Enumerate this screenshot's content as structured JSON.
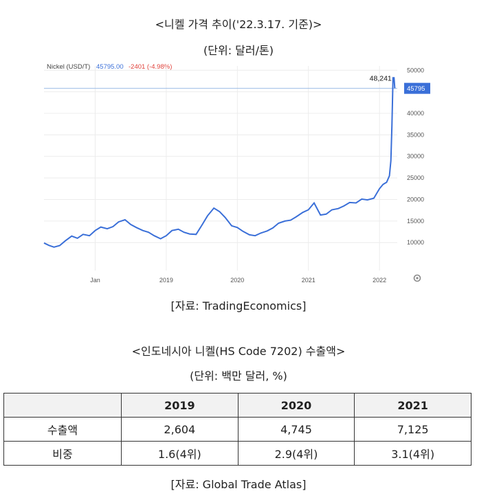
{
  "header": {
    "chart_title": "<니켈 가격 추이('22.3.17. 기준)>",
    "chart_unit": "(단위: 달러/톤)",
    "chart_source": "[자료: TradingEconomics]",
    "table_title": "<인도네시아 니켈(HS Code 7202) 수출액>",
    "table_unit": "(단위: 백만 달러, %)",
    "table_source": "[자료: Global Trade Atlas]"
  },
  "chart_data": {
    "type": "line",
    "series_label": "Nickel (USD/T)",
    "last_value_text": "45795.00",
    "change_text": "-2401 (-4.98%)",
    "peak_label": "48,241",
    "current_tag": "45795",
    "y_ticks": [
      10000,
      15000,
      20000,
      25000,
      30000,
      35000,
      40000,
      45000,
      50000
    ],
    "ylim": [
      3500,
      51000
    ],
    "x_ticks": [
      {
        "label": "Jan",
        "x": 2018.0
      },
      {
        "label": "2019",
        "x": 2019.0
      },
      {
        "label": "2020",
        "x": 2020.0
      },
      {
        "label": "2021",
        "x": 2021.0
      },
      {
        "label": "2022",
        "x": 2022.0
      }
    ],
    "xlim": [
      2017.28,
      2022.25
    ],
    "colors": {
      "line": "#3a6fd8",
      "ref_line": "#9bbbe6",
      "tag_bg": "#3a6fd8",
      "change": "#e0413a",
      "value": "#3a6fd8"
    },
    "points": [
      [
        2017.28,
        9900
      ],
      [
        2017.35,
        9350
      ],
      [
        2017.42,
        8950
      ],
      [
        2017.5,
        9300
      ],
      [
        2017.58,
        10400
      ],
      [
        2017.67,
        11500
      ],
      [
        2017.75,
        11000
      ],
      [
        2017.83,
        11900
      ],
      [
        2017.92,
        11600
      ],
      [
        2018.0,
        12800
      ],
      [
        2018.08,
        13600
      ],
      [
        2018.17,
        13200
      ],
      [
        2018.25,
        13700
      ],
      [
        2018.33,
        14800
      ],
      [
        2018.42,
        15300
      ],
      [
        2018.5,
        14200
      ],
      [
        2018.58,
        13500
      ],
      [
        2018.67,
        12800
      ],
      [
        2018.75,
        12400
      ],
      [
        2018.83,
        11600
      ],
      [
        2018.92,
        10900
      ],
      [
        2019.0,
        11600
      ],
      [
        2019.08,
        12800
      ],
      [
        2019.17,
        13100
      ],
      [
        2019.25,
        12400
      ],
      [
        2019.33,
        12000
      ],
      [
        2019.42,
        11900
      ],
      [
        2019.5,
        14000
      ],
      [
        2019.58,
        16200
      ],
      [
        2019.67,
        18000
      ],
      [
        2019.75,
        17200
      ],
      [
        2019.83,
        15800
      ],
      [
        2019.92,
        13900
      ],
      [
        2020.0,
        13500
      ],
      [
        2020.08,
        12600
      ],
      [
        2020.17,
        11800
      ],
      [
        2020.25,
        11600
      ],
      [
        2020.33,
        12200
      ],
      [
        2020.42,
        12700
      ],
      [
        2020.5,
        13400
      ],
      [
        2020.58,
        14500
      ],
      [
        2020.67,
        15000
      ],
      [
        2020.75,
        15200
      ],
      [
        2020.83,
        16000
      ],
      [
        2020.92,
        17000
      ],
      [
        2021.0,
        17600
      ],
      [
        2021.08,
        19200
      ],
      [
        2021.17,
        16400
      ],
      [
        2021.25,
        16600
      ],
      [
        2021.33,
        17600
      ],
      [
        2021.42,
        17900
      ],
      [
        2021.5,
        18500
      ],
      [
        2021.58,
        19300
      ],
      [
        2021.67,
        19200
      ],
      [
        2021.75,
        20100
      ],
      [
        2021.83,
        19900
      ],
      [
        2021.92,
        20300
      ],
      [
        2022.0,
        22500
      ],
      [
        2022.05,
        23500
      ],
      [
        2022.1,
        24000
      ],
      [
        2022.14,
        25500
      ],
      [
        2022.16,
        29000
      ],
      [
        2022.175,
        37000
      ],
      [
        2022.19,
        48241
      ],
      [
        2022.205,
        48241
      ],
      [
        2022.215,
        45795
      ]
    ]
  },
  "table": {
    "headers": [
      "",
      "2019",
      "2020",
      "2021"
    ],
    "rows": [
      {
        "label": "수출액",
        "values": [
          "2,604",
          "4,745",
          "7,125"
        ]
      },
      {
        "label": "비중",
        "values": [
          "1.6(4위)",
          "2.9(4위)",
          "3.1(4위)"
        ]
      }
    ]
  }
}
